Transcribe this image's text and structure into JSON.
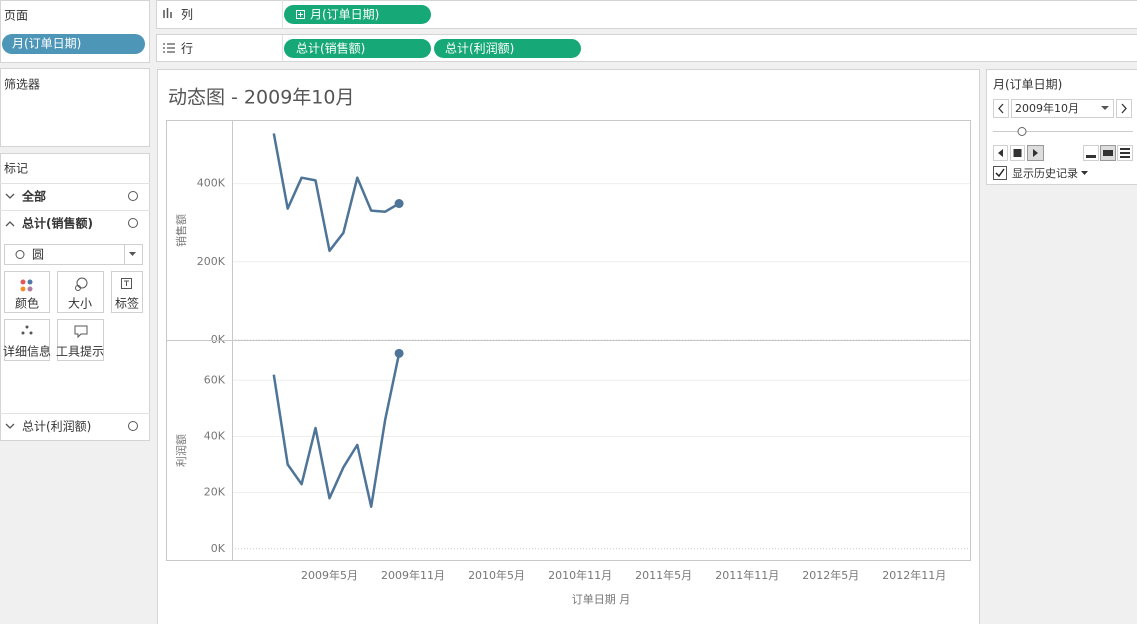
{
  "pages_shelf": {
    "title": "页面",
    "pill": "月(订单日期)"
  },
  "filters_shelf": {
    "title": "筛选器"
  },
  "marks_card": {
    "title": "标记",
    "all": "全部",
    "sales": "总计(销售额)",
    "mark_type": "圆",
    "buttons": [
      "颜色",
      "大小",
      "标签",
      "详细信息",
      "工具提示"
    ],
    "profit": "总计(利润额)"
  },
  "columns_shelf": {
    "label": "列",
    "pills": [
      "月(订单日期)"
    ]
  },
  "rows_shelf": {
    "label": "行",
    "pills": [
      "总计(销售额)",
      "总计(利润额)"
    ]
  },
  "page_control": {
    "title": "月(订单日期)",
    "current": "2009年10月",
    "show_history": "显示历史记录"
  },
  "chart_data": [
    {
      "type": "line",
      "title": "动态图 - 2009年10月",
      "y_label": "销售额",
      "color": "#4e7498",
      "grid": true,
      "x": [
        "2009-01",
        "2009-02",
        "2009-03",
        "2009-04",
        "2009-05",
        "2009-06",
        "2009-07",
        "2009-08",
        "2009-09",
        "2009-10"
      ],
      "values": [
        528000,
        336000,
        415000,
        408000,
        228000,
        274000,
        415000,
        331000,
        328000,
        349000
      ],
      "xlim": [
        "2008-10",
        "2013-03"
      ],
      "ylim": [
        0,
        560000
      ],
      "yticks": [
        {
          "value": 0,
          "label": "0K"
        },
        {
          "value": 200000,
          "label": "200K"
        },
        {
          "value": 400000,
          "label": "400K"
        }
      ]
    },
    {
      "type": "line",
      "y_label": "利润额",
      "x_label": "订单日期 月",
      "color": "#4e7498",
      "grid": true,
      "x": [
        "2009-01",
        "2009-02",
        "2009-03",
        "2009-04",
        "2009-05",
        "2009-06",
        "2009-07",
        "2009-08",
        "2009-09",
        "2009-10"
      ],
      "values": [
        62000,
        30000,
        23000,
        43000,
        18000,
        29000,
        37000,
        15000,
        46000,
        69600
      ],
      "xlim": [
        "2008-10",
        "2013-03"
      ],
      "ylim": [
        -4000,
        74000
      ],
      "yticks": [
        {
          "value": 0,
          "label": "0K"
        },
        {
          "value": 20000,
          "label": "20K"
        },
        {
          "value": 40000,
          "label": "40K"
        },
        {
          "value": 60000,
          "label": "60K"
        }
      ],
      "xticks": [
        {
          "value": "2009-05",
          "label": "2009年5月"
        },
        {
          "value": "2009-11",
          "label": "2009年11月"
        },
        {
          "value": "2010-05",
          "label": "2010年5月"
        },
        {
          "value": "2010-11",
          "label": "2010年11月"
        },
        {
          "value": "2011-05",
          "label": "2011年5月"
        },
        {
          "value": "2011-11",
          "label": "2011年11月"
        },
        {
          "value": "2012-05",
          "label": "2012年5月"
        },
        {
          "value": "2012-11",
          "label": "2012年11月"
        }
      ]
    }
  ]
}
